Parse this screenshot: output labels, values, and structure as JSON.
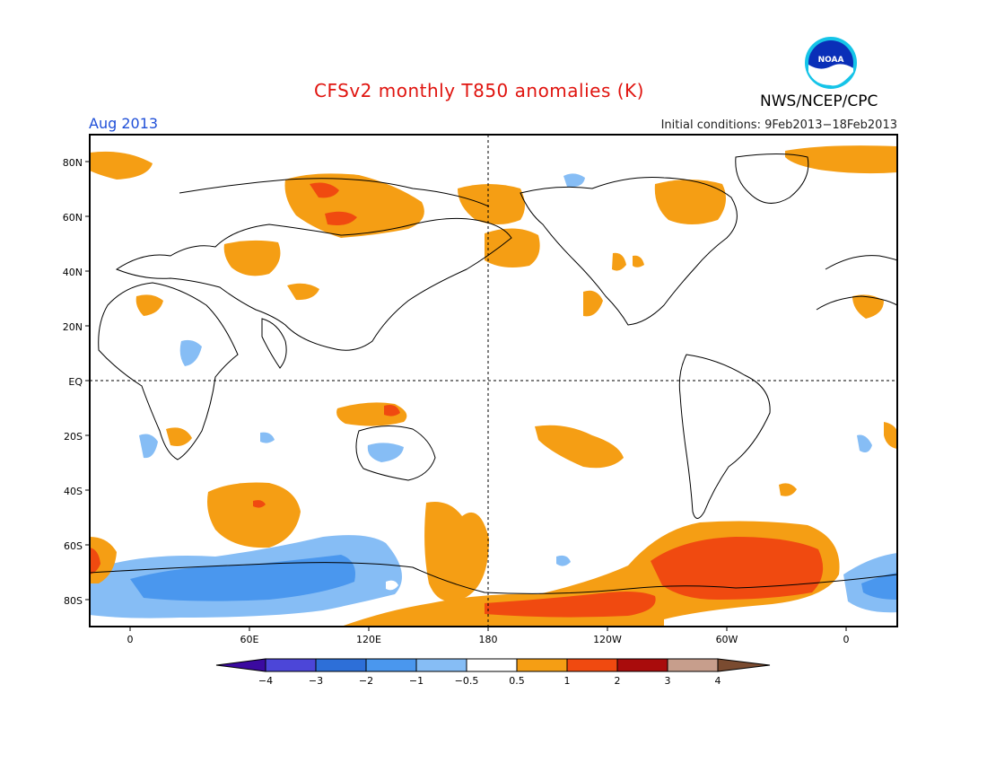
{
  "header": {
    "title": "CFSv2 monthly T850 anomalies (K)",
    "period": "Aug 2013",
    "initial_conditions": "Initial conditions: 9Feb2013−18Feb2013",
    "organization": "NWS/NCEP/CPC",
    "logo_text": "NOAA"
  },
  "map": {
    "lat_labels": [
      "80N",
      "60N",
      "40N",
      "20N",
      "EQ",
      "20S",
      "40S",
      "60S",
      "80S"
    ],
    "lon_labels": [
      "0",
      "60E",
      "120E",
      "180",
      "120W",
      "60W",
      "0"
    ]
  },
  "legend": {
    "tick_labels": [
      "−4",
      "−3",
      "−2",
      "−1",
      "−0.5",
      "0.5",
      "1",
      "2",
      "3",
      "4"
    ],
    "colors": [
      "#3b0aa0",
      "#4c46d8",
      "#2d6fd8",
      "#4a97ee",
      "#86bdf5",
      "#ffffff",
      "#f59e14",
      "#f04a10",
      "#a90c0c",
      "#c79e8c",
      "#7a4b30"
    ]
  }
}
